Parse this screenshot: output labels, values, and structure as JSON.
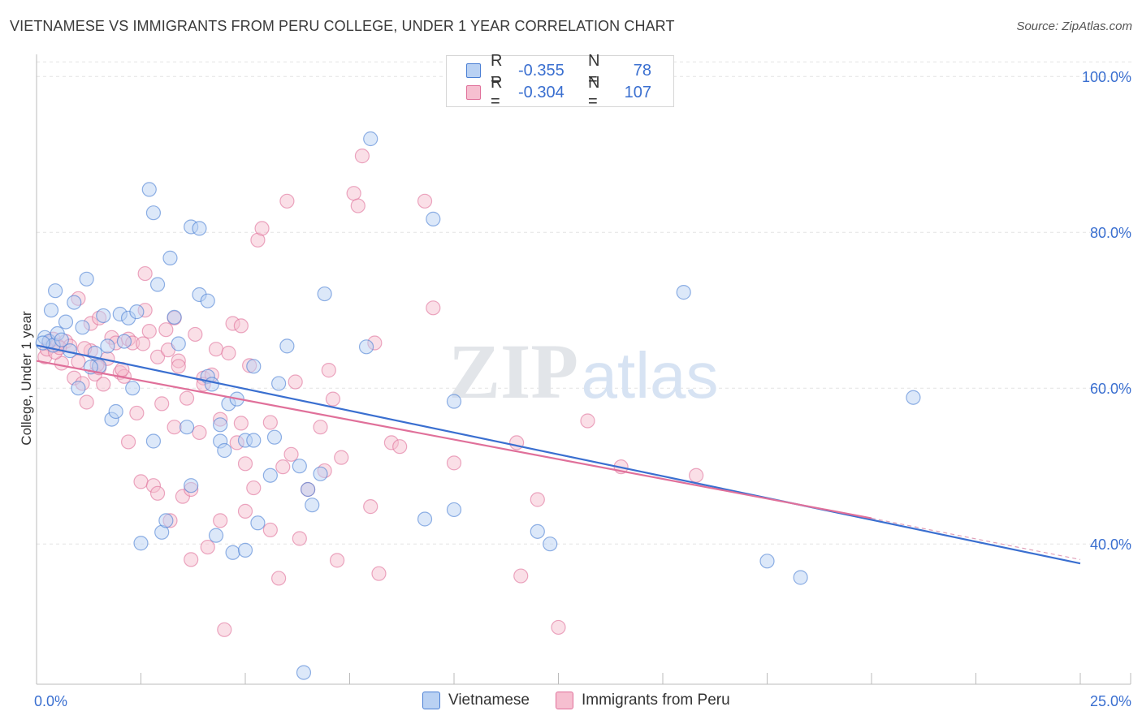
{
  "title": "VIETNAMESE VS IMMIGRANTS FROM PERU COLLEGE, UNDER 1 YEAR CORRELATION CHART",
  "source": "Source: ZipAtlas.com",
  "watermark": {
    "zip": "ZIP",
    "atlas": "atlas"
  },
  "colors": {
    "blue": "#4a7fd4",
    "blue_fill": "#b9d1f3",
    "pink": "#e0709a",
    "pink_fill": "#f6bfd0",
    "axis_text": "#3a6fd0"
  },
  "legend": {
    "rows": [
      {
        "r_label": "R =",
        "r_value": "-0.355",
        "n_label": "N =",
        "n_value": "78"
      },
      {
        "r_label": "R =",
        "r_value": "-0.304",
        "n_label": "N =",
        "n_value": "107"
      }
    ]
  },
  "bottom_legend": {
    "blue": "Vietnamese",
    "pink": "Immigrants from Peru"
  },
  "chart_data": {
    "type": "scatter",
    "xlabel": "",
    "ylabel": "College, Under 1 year",
    "xlim": [
      0,
      25
    ],
    "ylim": [
      22,
      102
    ],
    "x_tick_labels": [
      "0.0%",
      "25.0%"
    ],
    "y_ticks": [
      40,
      60,
      80,
      100
    ],
    "y_tick_labels": [
      "40.0%",
      "60.0%",
      "80.0%",
      "100.0%"
    ],
    "series": [
      {
        "name": "Vietnamese",
        "R": -0.355,
        "N": 78,
        "trend": {
          "x": [
            0,
            25
          ],
          "y": [
            65.5,
            37.5
          ],
          "dashed_from": null
        },
        "points": [
          [
            0.2,
            66.5
          ],
          [
            0.3,
            66.0
          ],
          [
            0.4,
            65.5
          ],
          [
            0.45,
            72.5
          ],
          [
            0.35,
            70.0
          ],
          [
            0.5,
            67.0
          ],
          [
            0.7,
            68.5
          ],
          [
            0.8,
            64.8
          ],
          [
            0.9,
            71.0
          ],
          [
            1.1,
            67.8
          ],
          [
            1.2,
            74.0
          ],
          [
            1.0,
            60.0
          ],
          [
            1.4,
            64.5
          ],
          [
            1.5,
            62.8
          ],
          [
            1.6,
            69.3
          ],
          [
            1.7,
            65.4
          ],
          [
            1.8,
            56.0
          ],
          [
            1.9,
            57.0
          ],
          [
            2.0,
            69.5
          ],
          [
            2.1,
            66.0
          ],
          [
            2.2,
            69.0
          ],
          [
            2.3,
            60.0
          ],
          [
            2.4,
            69.8
          ],
          [
            2.5,
            40.1
          ],
          [
            2.7,
            85.5
          ],
          [
            2.8,
            82.5
          ],
          [
            2.8,
            53.2
          ],
          [
            2.9,
            73.3
          ],
          [
            3.0,
            41.5
          ],
          [
            3.1,
            43.0
          ],
          [
            3.2,
            76.7
          ],
          [
            3.3,
            69.1
          ],
          [
            3.4,
            65.7
          ],
          [
            3.6,
            55.0
          ],
          [
            3.7,
            47.5
          ],
          [
            3.7,
            80.7
          ],
          [
            3.9,
            80.5
          ],
          [
            3.9,
            72.0
          ],
          [
            4.1,
            71.2
          ],
          [
            4.1,
            61.5
          ],
          [
            4.2,
            60.5
          ],
          [
            4.3,
            41.1
          ],
          [
            4.4,
            55.3
          ],
          [
            4.4,
            53.2
          ],
          [
            4.5,
            52.0
          ],
          [
            4.6,
            58.0
          ],
          [
            4.7,
            38.9
          ],
          [
            4.8,
            58.6
          ],
          [
            5.0,
            39.2
          ],
          [
            5.0,
            53.3
          ],
          [
            5.2,
            53.3
          ],
          [
            5.2,
            62.8
          ],
          [
            5.3,
            42.7
          ],
          [
            5.6,
            48.8
          ],
          [
            5.7,
            53.7
          ],
          [
            5.8,
            60.6
          ],
          [
            6.0,
            65.4
          ],
          [
            6.3,
            50.0
          ],
          [
            6.4,
            23.5
          ],
          [
            6.5,
            47.0
          ],
          [
            6.6,
            45.0
          ],
          [
            6.8,
            49.0
          ],
          [
            6.9,
            72.1
          ],
          [
            8.0,
            92.0
          ],
          [
            7.9,
            65.3
          ],
          [
            9.3,
            43.2
          ],
          [
            9.5,
            81.7
          ],
          [
            10.0,
            44.4
          ],
          [
            10.0,
            58.3
          ],
          [
            12.0,
            41.6
          ],
          [
            12.3,
            40.0
          ],
          [
            15.5,
            72.3
          ],
          [
            17.5,
            37.8
          ],
          [
            18.3,
            35.7
          ],
          [
            21.0,
            58.8
          ],
          [
            0.15,
            65.8
          ],
          [
            0.6,
            66.2
          ],
          [
            1.3,
            62.7
          ]
        ]
      },
      {
        "name": "Immigrants from Peru",
        "R": -0.304,
        "N": 107,
        "trend": {
          "x": [
            0,
            20
          ],
          "y": [
            63.5,
            43.3
          ],
          "dashed_to": [
            25,
            38.0
          ]
        },
        "points": [
          [
            0.2,
            64.0
          ],
          [
            0.3,
            65.8
          ],
          [
            0.4,
            66.3
          ],
          [
            0.5,
            65.5
          ],
          [
            0.6,
            63.2
          ],
          [
            0.7,
            66.0
          ],
          [
            0.8,
            65.4
          ],
          [
            0.9,
            61.3
          ],
          [
            1.0,
            63.4
          ],
          [
            1.0,
            71.5
          ],
          [
            1.1,
            60.6
          ],
          [
            1.2,
            58.2
          ],
          [
            1.3,
            64.8
          ],
          [
            1.3,
            68.3
          ],
          [
            1.4,
            61.8
          ],
          [
            1.5,
            62.6
          ],
          [
            1.5,
            69.0
          ],
          [
            1.6,
            60.5
          ],
          [
            1.7,
            63.8
          ],
          [
            1.8,
            66.5
          ],
          [
            1.9,
            65.8
          ],
          [
            2.0,
            62.0
          ],
          [
            2.1,
            61.5
          ],
          [
            2.2,
            66.3
          ],
          [
            2.2,
            53.1
          ],
          [
            2.3,
            65.8
          ],
          [
            2.4,
            56.8
          ],
          [
            2.5,
            48.0
          ],
          [
            2.6,
            74.7
          ],
          [
            2.6,
            70.0
          ],
          [
            2.7,
            67.3
          ],
          [
            2.8,
            47.5
          ],
          [
            2.9,
            64.0
          ],
          [
            2.9,
            46.5
          ],
          [
            3.0,
            58.0
          ],
          [
            3.1,
            67.5
          ],
          [
            3.2,
            43.0
          ],
          [
            3.3,
            69.0
          ],
          [
            3.3,
            55.0
          ],
          [
            3.4,
            63.5
          ],
          [
            3.4,
            62.8
          ],
          [
            3.5,
            46.1
          ],
          [
            3.6,
            58.7
          ],
          [
            3.7,
            47.0
          ],
          [
            3.7,
            38.0
          ],
          [
            3.8,
            66.9
          ],
          [
            3.9,
            54.3
          ],
          [
            4.0,
            61.3
          ],
          [
            4.0,
            60.5
          ],
          [
            4.1,
            39.6
          ],
          [
            4.2,
            61.7
          ],
          [
            4.3,
            65.0
          ],
          [
            4.4,
            56.0
          ],
          [
            4.4,
            43.0
          ],
          [
            4.5,
            29.0
          ],
          [
            4.6,
            64.5
          ],
          [
            4.7,
            68.3
          ],
          [
            4.8,
            53.0
          ],
          [
            4.9,
            68.0
          ],
          [
            4.9,
            55.5
          ],
          [
            5.0,
            50.3
          ],
          [
            5.0,
            44.2
          ],
          [
            5.1,
            62.9
          ],
          [
            5.2,
            47.2
          ],
          [
            5.3,
            79.0
          ],
          [
            5.4,
            80.5
          ],
          [
            5.6,
            55.6
          ],
          [
            5.6,
            41.8
          ],
          [
            5.8,
            35.6
          ],
          [
            5.9,
            49.9
          ],
          [
            6.0,
            84.0
          ],
          [
            6.1,
            51.5
          ],
          [
            6.2,
            60.8
          ],
          [
            6.3,
            40.7
          ],
          [
            6.5,
            47.0
          ],
          [
            6.8,
            55.0
          ],
          [
            6.9,
            49.4
          ],
          [
            7.0,
            62.3
          ],
          [
            7.1,
            58.6
          ],
          [
            7.2,
            37.9
          ],
          [
            7.3,
            51.1
          ],
          [
            7.6,
            85.0
          ],
          [
            7.7,
            83.4
          ],
          [
            7.8,
            89.8
          ],
          [
            8.0,
            44.8
          ],
          [
            8.1,
            65.8
          ],
          [
            8.2,
            36.2
          ],
          [
            8.5,
            53.0
          ],
          [
            8.7,
            52.5
          ],
          [
            9.3,
            84.0
          ],
          [
            9.5,
            70.3
          ],
          [
            10.0,
            50.4
          ],
          [
            11.5,
            53.0
          ],
          [
            11.6,
            35.9
          ],
          [
            12.0,
            45.7
          ],
          [
            12.5,
            29.3
          ],
          [
            13.2,
            55.8
          ],
          [
            14.0,
            49.9
          ],
          [
            15.8,
            48.8
          ],
          [
            0.25,
            65.0
          ],
          [
            0.45,
            64.6
          ],
          [
            0.55,
            65.2
          ],
          [
            1.15,
            65.1
          ],
          [
            1.45,
            63.0
          ],
          [
            2.05,
            62.4
          ],
          [
            2.55,
            65.7
          ],
          [
            3.15,
            64.9
          ]
        ]
      }
    ]
  }
}
